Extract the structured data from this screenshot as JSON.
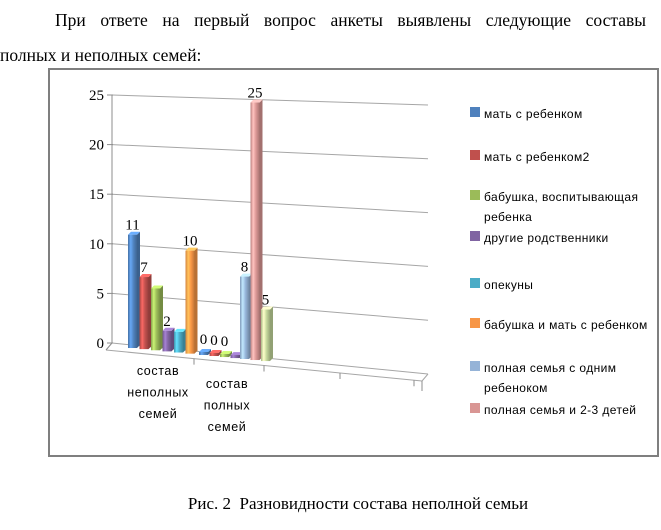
{
  "document": {
    "paragraph": {
      "line1": "При ответе на первый вопрос анкеты выявлены следующие составы",
      "line2": "полных и неполных семей:"
    },
    "caption": "Рис. 2  Разновидности состава неполной семьи"
  },
  "chart_data": {
    "type": "bar",
    "style": "3d-clustered-column",
    "title": "",
    "xlabel": "",
    "ylabel": "",
    "categories": [
      "состав неполных семей",
      "состав полных семей"
    ],
    "ylim": [
      0,
      25
    ],
    "y_ticks": [
      "0",
      "5",
      "10",
      "15",
      "20",
      "25"
    ],
    "grid": true,
    "legend_position": "right",
    "series": [
      {
        "name": "мать с ребенком",
        "color": "#4F81BD",
        "values": [
          11,
          0
        ],
        "in_legend": true
      },
      {
        "name": "мать с ребенком2",
        "color": "#C0504D",
        "values": [
          7,
          0
        ],
        "in_legend": true
      },
      {
        "name": "бабушка, воспитывающая ребенка",
        "color": "#9BBB59",
        "values": [
          6,
          0
        ],
        "in_legend": true
      },
      {
        "name": "другие родственники",
        "color": "#8064A2",
        "values": [
          2,
          0
        ],
        "in_legend": true
      },
      {
        "name": "опекуны",
        "color": "#4BACC6",
        "values": [
          2,
          null
        ],
        "in_legend": true
      },
      {
        "name": "бабушка и мать с ребенком",
        "color": "#F79646",
        "values": [
          10,
          null
        ],
        "in_legend": true
      },
      {
        "name": "полная семья с одним ребеноком",
        "color": "#95B3D7",
        "values": [
          null,
          8
        ],
        "in_legend": true
      },
      {
        "name": "полная семья и 2-3 детей",
        "color": "#D99694",
        "values": [
          null,
          25
        ],
        "in_legend": true
      },
      {
        "name": "",
        "color": "#C3D69B",
        "values": [
          null,
          5
        ],
        "in_legend": false
      }
    ],
    "data_labels": [
      [
        "11",
        "0"
      ],
      [
        "7",
        "0"
      ],
      [
        "",
        "0"
      ],
      [
        "2",
        ""
      ],
      [
        "",
        null
      ],
      [
        "10",
        null
      ],
      [
        null,
        "8"
      ],
      [
        null,
        "25"
      ],
      [
        null,
        "5"
      ]
    ]
  }
}
